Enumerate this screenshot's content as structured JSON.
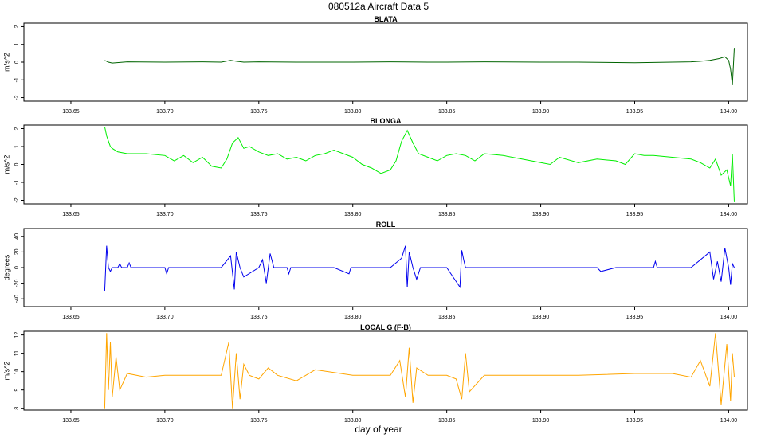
{
  "figure": {
    "title": "080512a   Aircraft Data 5",
    "xlabel": "day of year"
  },
  "chart_data": [
    {
      "type": "line",
      "title": "BLATA",
      "ylabel": "m/s^2",
      "xlim": [
        133.625,
        134.01
      ],
      "ylim": [
        -2.2,
        2.2
      ],
      "xticks": [
        133.65,
        133.7,
        133.75,
        133.8,
        133.85,
        133.9,
        133.95,
        134.0
      ],
      "xtick_labels": [
        "133.65",
        "133.70",
        "133.75",
        "133.80",
        "133.85",
        "133.90",
        "133.95",
        "134.00"
      ],
      "yticks": [
        -2,
        -1,
        0,
        1,
        2
      ],
      "ytick_labels": [
        "-2",
        "-1",
        "0",
        "1",
        "2"
      ],
      "series": [
        {
          "color": "#006400",
          "x": [
            133.668,
            133.67,
            133.672,
            133.68,
            133.7,
            133.72,
            133.73,
            133.735,
            133.738,
            133.742,
            133.75,
            133.77,
            133.8,
            133.82,
            133.84,
            133.85,
            133.87,
            133.9,
            133.92,
            133.95,
            133.97,
            133.98,
            133.985,
            133.99,
            133.995,
            133.998,
            134.0,
            134.001,
            134.002,
            134.003
          ],
          "y": [
            0.1,
            0.0,
            -0.05,
            0.02,
            0.0,
            0.02,
            0.0,
            0.1,
            0.05,
            0.0,
            0.02,
            0.0,
            0.0,
            0.02,
            0.0,
            0.0,
            0.02,
            0.0,
            0.0,
            -0.03,
            0.0,
            0.02,
            0.05,
            0.1,
            0.2,
            0.3,
            0.1,
            -0.4,
            -1.3,
            0.8
          ]
        }
      ]
    },
    {
      "type": "line",
      "title": "BLONGA",
      "ylabel": "m/s^2",
      "xlim": [
        133.625,
        134.01
      ],
      "ylim": [
        -2.2,
        2.2
      ],
      "xticks": [
        133.65,
        133.7,
        133.75,
        133.8,
        133.85,
        133.9,
        133.95,
        134.0
      ],
      "xtick_labels": [
        "133.65",
        "133.70",
        "133.75",
        "133.80",
        "133.85",
        "133.90",
        "133.95",
        "134.00"
      ],
      "yticks": [
        -2,
        -1,
        0,
        1,
        2
      ],
      "ytick_labels": [
        "-2",
        "-1",
        "0",
        "1",
        "2"
      ],
      "series": [
        {
          "color": "#00ee00",
          "x": [
            133.668,
            133.669,
            133.67,
            133.671,
            133.672,
            133.675,
            133.68,
            133.69,
            133.7,
            133.705,
            133.71,
            133.715,
            133.72,
            133.725,
            133.73,
            133.733,
            133.736,
            133.739,
            133.742,
            133.745,
            133.75,
            133.755,
            133.76,
            133.765,
            133.77,
            133.775,
            133.78,
            133.785,
            133.79,
            133.8,
            133.805,
            133.81,
            133.815,
            133.82,
            133.823,
            133.826,
            133.829,
            133.832,
            133.835,
            133.84,
            133.845,
            133.85,
            133.855,
            133.86,
            133.865,
            133.87,
            133.88,
            133.89,
            133.9,
            133.905,
            133.91,
            133.92,
            133.93,
            133.94,
            133.945,
            133.95,
            133.955,
            133.96,
            133.97,
            133.98,
            133.985,
            133.99,
            133.993,
            133.996,
            133.999,
            134.001,
            134.002,
            134.003
          ],
          "y": [
            2.1,
            1.6,
            1.3,
            1.0,
            0.9,
            0.7,
            0.6,
            0.6,
            0.5,
            0.2,
            0.5,
            0.1,
            0.4,
            -0.1,
            -0.2,
            0.3,
            1.2,
            1.5,
            0.9,
            1.0,
            0.7,
            0.5,
            0.6,
            0.3,
            0.4,
            0.2,
            0.5,
            0.6,
            0.8,
            0.4,
            0.0,
            -0.2,
            -0.5,
            -0.3,
            0.2,
            1.3,
            1.9,
            1.2,
            0.6,
            0.4,
            0.2,
            0.5,
            0.6,
            0.5,
            0.2,
            0.6,
            0.5,
            0.3,
            0.1,
            0.0,
            0.4,
            0.1,
            0.3,
            0.2,
            0.0,
            0.6,
            0.5,
            0.5,
            0.4,
            0.3,
            0.1,
            -0.2,
            0.3,
            -0.6,
            -0.3,
            -1.2,
            0.6,
            -2.1
          ]
        }
      ]
    },
    {
      "type": "line",
      "title": "ROLL",
      "ylabel": "degrees",
      "xlim": [
        133.625,
        134.01
      ],
      "ylim": [
        -50,
        50
      ],
      "xticks": [
        133.65,
        133.7,
        133.75,
        133.8,
        133.85,
        133.9,
        133.95,
        134.0
      ],
      "xtick_labels": [
        "133.65",
        "133.70",
        "133.75",
        "133.80",
        "133.85",
        "133.90",
        "133.95",
        "134.00"
      ],
      "yticks": [
        -40,
        -20,
        0,
        20,
        40
      ],
      "ytick_labels": [
        "-40",
        "-20",
        "0",
        "20",
        "40"
      ],
      "series": [
        {
          "color": "#0000ee",
          "x": [
            133.668,
            133.669,
            133.67,
            133.671,
            133.672,
            133.675,
            133.676,
            133.677,
            133.68,
            133.681,
            133.682,
            133.69,
            133.7,
            133.701,
            133.702,
            133.71,
            133.72,
            133.73,
            133.735,
            133.737,
            133.738,
            133.74,
            133.742,
            133.75,
            133.752,
            133.754,
            133.756,
            133.758,
            133.76,
            133.765,
            133.766,
            133.767,
            133.77,
            133.78,
            133.79,
            133.798,
            133.799,
            133.8,
            133.82,
            133.826,
            133.828,
            133.829,
            133.83,
            133.832,
            133.834,
            133.836,
            133.84,
            133.85,
            133.857,
            133.858,
            133.859,
            133.86,
            133.87,
            133.9,
            133.93,
            133.932,
            133.94,
            133.96,
            133.961,
            133.962,
            133.98,
            133.99,
            133.992,
            133.994,
            133.996,
            133.998,
            134.0,
            134.001,
            134.002,
            134.003
          ],
          "y": [
            -30,
            28,
            0,
            -5,
            0,
            0,
            5,
            0,
            0,
            6,
            0,
            0,
            0,
            -8,
            0,
            0,
            0,
            0,
            15,
            -28,
            20,
            0,
            -12,
            0,
            10,
            -20,
            18,
            0,
            0,
            0,
            -8,
            0,
            0,
            0,
            0,
            -8,
            0,
            0,
            0,
            12,
            28,
            -25,
            20,
            0,
            -15,
            0,
            0,
            0,
            -25,
            22,
            10,
            0,
            0,
            0,
            0,
            -5,
            0,
            0,
            8,
            0,
            0,
            20,
            -15,
            8,
            -18,
            25,
            0,
            -22,
            5,
            0
          ]
        }
      ]
    },
    {
      "type": "line",
      "title": "LOCAL G (F-B)",
      "ylabel": "m/s^2",
      "xlim": [
        133.625,
        134.01
      ],
      "ylim": [
        7.9,
        12.2
      ],
      "xticks": [
        133.65,
        133.7,
        133.75,
        133.8,
        133.85,
        133.9,
        133.95,
        134.0
      ],
      "xtick_labels": [
        "133.65",
        "133.70",
        "133.75",
        "133.80",
        "133.85",
        "133.90",
        "133.95",
        "134.00"
      ],
      "yticks": [
        8,
        9,
        10,
        11,
        12
      ],
      "ytick_labels": [
        "8",
        "9",
        "10",
        "11",
        "12"
      ],
      "series": [
        {
          "color": "#ffa500",
          "x": [
            133.668,
            133.669,
            133.67,
            133.671,
            133.672,
            133.674,
            133.676,
            133.68,
            133.69,
            133.7,
            133.72,
            133.73,
            133.734,
            133.736,
            133.738,
            133.74,
            133.742,
            133.745,
            133.75,
            133.755,
            133.76,
            133.77,
            133.78,
            133.8,
            133.82,
            133.825,
            133.828,
            133.83,
            133.832,
            133.834,
            133.84,
            133.85,
            133.855,
            133.858,
            133.86,
            133.862,
            133.87,
            133.9,
            133.92,
            133.95,
            133.97,
            133.98,
            133.985,
            133.99,
            133.993,
            133.996,
            133.999,
            134.001,
            134.002,
            134.003
          ],
          "y": [
            8.0,
            12.1,
            9.0,
            11.6,
            8.6,
            10.8,
            9.0,
            9.9,
            9.7,
            9.8,
            9.8,
            9.8,
            11.6,
            8.0,
            11.0,
            8.5,
            10.4,
            9.8,
            9.6,
            10.2,
            9.8,
            9.5,
            10.1,
            9.8,
            9.8,
            10.6,
            8.6,
            11.3,
            8.3,
            10.2,
            9.8,
            9.8,
            9.6,
            8.5,
            11.0,
            8.9,
            9.8,
            9.8,
            9.8,
            9.9,
            9.9,
            9.7,
            10.6,
            9.2,
            12.1,
            8.2,
            11.5,
            8.4,
            11.0,
            9.7
          ]
        }
      ]
    }
  ]
}
